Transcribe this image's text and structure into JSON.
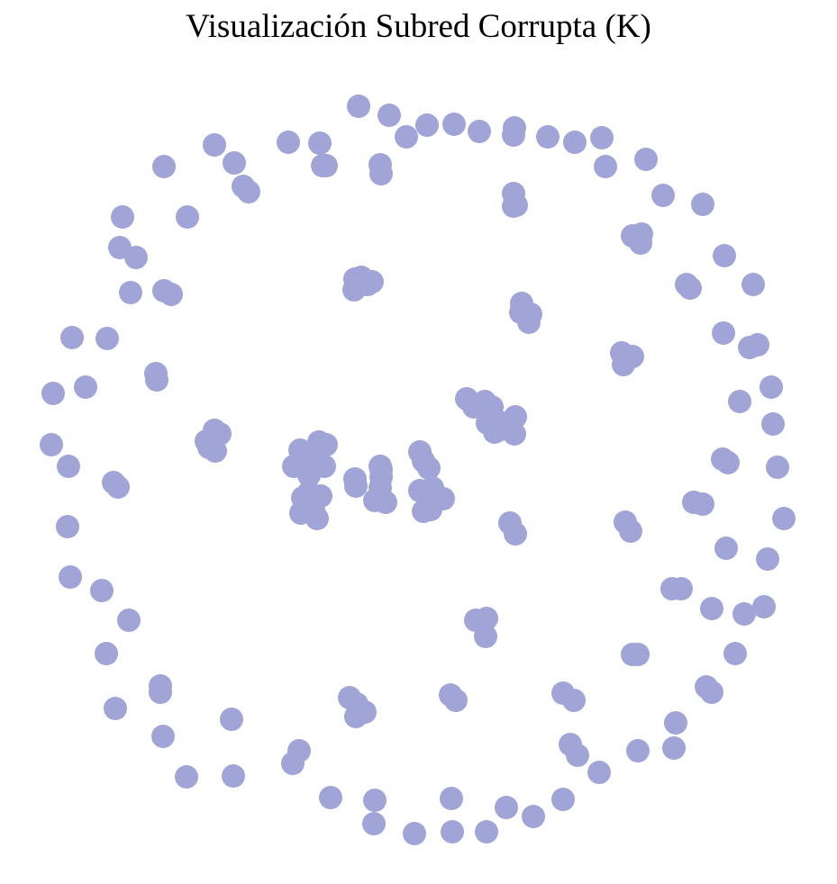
{
  "title": "Visualización Subred Corrupta (K)",
  "graph": {
    "node_color": "#a0a4d6",
    "node_count": 196
  }
}
